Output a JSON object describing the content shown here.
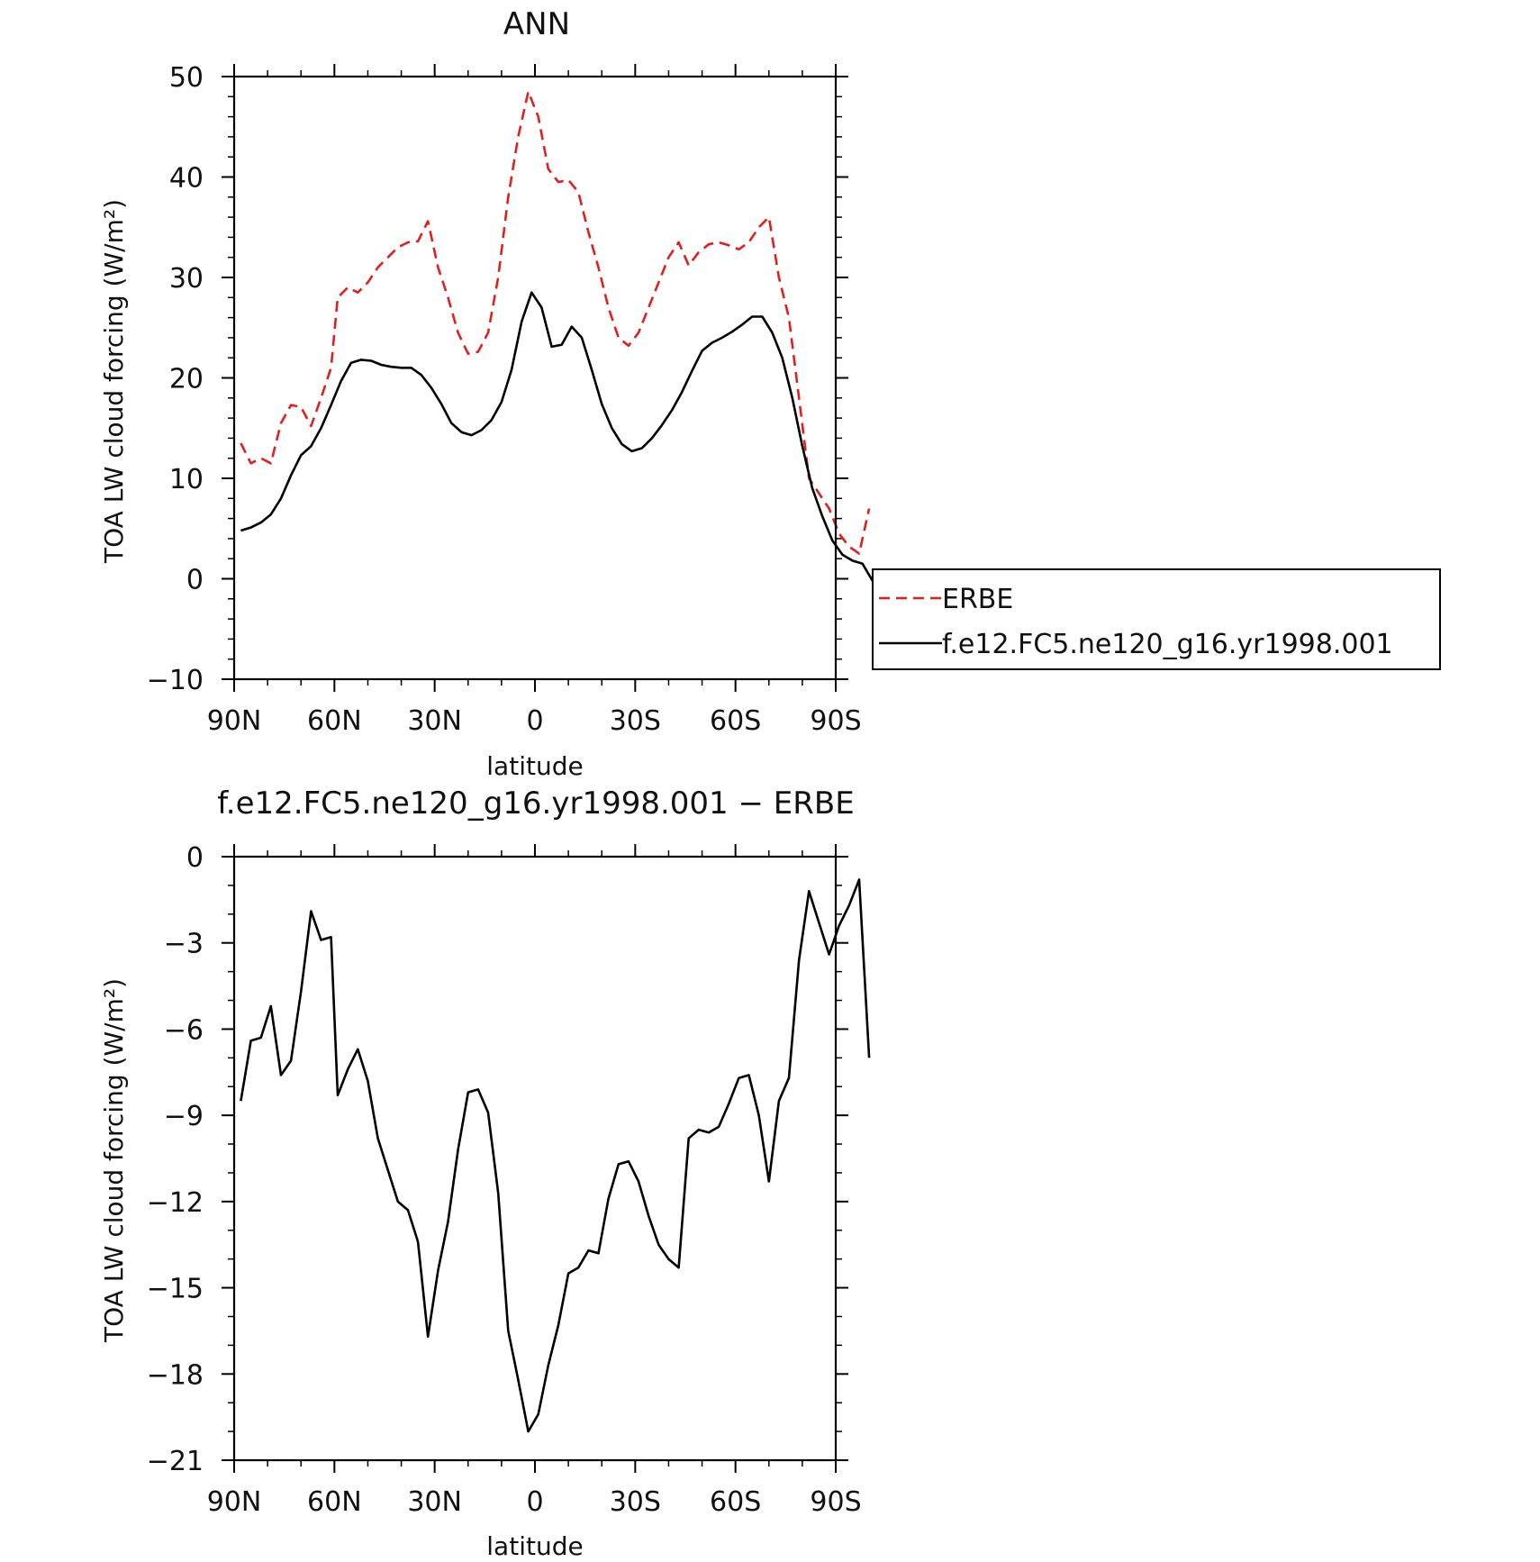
{
  "chart_data": [
    {
      "type": "line",
      "title": "ANN",
      "xlabel": "latitude",
      "ylabel": "TOA LW cloud forcing (W/m²)",
      "xlim": [
        90,
        -90
      ],
      "ylim": [
        -10,
        50
      ],
      "xticks": [
        {
          "value": 90,
          "label": "90N"
        },
        {
          "value": 60,
          "label": "60N"
        },
        {
          "value": 30,
          "label": "30N"
        },
        {
          "value": 0,
          "label": "0"
        },
        {
          "value": -30,
          "label": "30S"
        },
        {
          "value": -60,
          "label": "60S"
        },
        {
          "value": -90,
          "label": "90S"
        }
      ],
      "yticks": [
        {
          "value": 50,
          "label": "50"
        },
        {
          "value": 40,
          "label": "40"
        },
        {
          "value": 30,
          "label": "30"
        },
        {
          "value": 20,
          "label": "20"
        },
        {
          "value": 10,
          "label": "10"
        },
        {
          "value": 0,
          "label": "0"
        },
        {
          "value": -10,
          "label": "−10"
        }
      ],
      "legend_position": "right, outside plot",
      "series": [
        {
          "name": "ERBE",
          "color": "#e0201c",
          "dash": "dashed",
          "points": [
            [
              88,
              13.5
            ],
            [
              85,
              11.5
            ],
            [
              82,
              12
            ],
            [
              79,
              11.5
            ],
            [
              76,
              15.5
            ],
            [
              73,
              17.3
            ],
            [
              70,
              17.1
            ],
            [
              67,
              15.2
            ],
            [
              64,
              18
            ],
            [
              61,
              21
            ],
            [
              59,
              28
            ],
            [
              56,
              29
            ],
            [
              53,
              28.5
            ],
            [
              50,
              29.5
            ],
            [
              47,
              31
            ],
            [
              44,
              32
            ],
            [
              41,
              33
            ],
            [
              38,
              33.5
            ],
            [
              35,
              33.6
            ],
            [
              32,
              35.6
            ],
            [
              29,
              31
            ],
            [
              26,
              28
            ],
            [
              23,
              24.5
            ],
            [
              20,
              22.4
            ],
            [
              17,
              22.6
            ],
            [
              14,
              24.5
            ],
            [
              11,
              30
            ],
            [
              8,
              38
            ],
            [
              5,
              44
            ],
            [
              2,
              48.5
            ],
            [
              -1,
              46
            ],
            [
              -4,
              40.8
            ],
            [
              -7,
              39.5
            ],
            [
              -10,
              39.7
            ],
            [
              -13,
              38.5
            ],
            [
              -16,
              34.5
            ],
            [
              -19,
              31
            ],
            [
              -22,
              27
            ],
            [
              -25,
              24
            ],
            [
              -28,
              23.2
            ],
            [
              -31,
              24.5
            ],
            [
              -34,
              27
            ],
            [
              -37,
              29.5
            ],
            [
              -40,
              32
            ],
            [
              -43,
              33.5
            ],
            [
              -46,
              31.2
            ],
            [
              -49,
              32.5
            ],
            [
              -52,
              33.3
            ],
            [
              -55,
              33.5
            ],
            [
              -58,
              33.2
            ],
            [
              -61,
              32.8
            ],
            [
              -64,
              33.5
            ],
            [
              -67,
              35
            ],
            [
              -70,
              36
            ],
            [
              -73,
              30
            ],
            [
              -76,
              26
            ],
            [
              -79,
              18
            ],
            [
              -82,
              10
            ],
            [
              -85,
              8.5
            ],
            [
              -88,
              7
            ],
            [
              -91,
              4.5
            ],
            [
              -94,
              3.2
            ],
            [
              -97,
              2.5
            ],
            [
              -100,
              7
            ]
          ]
        },
        {
          "name": "f.e12.FC5.ne120_g16.yr1998.001",
          "color": "#000000",
          "dash": "solid",
          "points": [
            [
              88,
              4.8
            ],
            [
              85,
              5.1
            ],
            [
              82,
              5.6
            ],
            [
              79,
              6.4
            ],
            [
              76,
              8
            ],
            [
              73,
              10.3
            ],
            [
              70,
              12.3
            ],
            [
              67,
              13.2
            ],
            [
              64,
              15
            ],
            [
              61,
              17.3
            ],
            [
              58,
              19.7
            ],
            [
              55,
              21.5
            ],
            [
              52,
              21.8
            ],
            [
              49,
              21.7
            ],
            [
              46,
              21.3
            ],
            [
              43,
              21.1
            ],
            [
              40,
              21
            ],
            [
              37,
              21
            ],
            [
              34,
              20.3
            ],
            [
              31,
              19
            ],
            [
              28,
              17.4
            ],
            [
              25,
              15.5
            ],
            [
              22,
              14.6
            ],
            [
              19,
              14.3
            ],
            [
              16,
              14.8
            ],
            [
              13,
              15.8
            ],
            [
              10,
              17.6
            ],
            [
              7,
              20.8
            ],
            [
              4,
              25.6
            ],
            [
              1,
              28.5
            ],
            [
              -2,
              27
            ],
            [
              -5,
              23.1
            ],
            [
              -8,
              23.3
            ],
            [
              -11,
              25.1
            ],
            [
              -14,
              24
            ],
            [
              -17,
              20.8
            ],
            [
              -20,
              17.4
            ],
            [
              -23,
              15
            ],
            [
              -26,
              13.4
            ],
            [
              -29,
              12.7
            ],
            [
              -32,
              13
            ],
            [
              -35,
              14
            ],
            [
              -38,
              15.3
            ],
            [
              -41,
              16.8
            ],
            [
              -44,
              18.6
            ],
            [
              -47,
              20.7
            ],
            [
              -50,
              22.7
            ],
            [
              -53,
              23.5
            ],
            [
              -56,
              24
            ],
            [
              -59,
              24.6
            ],
            [
              -62,
              25.3
            ],
            [
              -65,
              26.1
            ],
            [
              -68,
              26.1
            ],
            [
              -71,
              24.5
            ],
            [
              -74,
              22
            ],
            [
              -77,
              18
            ],
            [
              -80,
              13.2
            ],
            [
              -83,
              9
            ],
            [
              -86,
              6.2
            ],
            [
              -89,
              3.8
            ],
            [
              -92,
              2.4
            ],
            [
              -95,
              1.8
            ],
            [
              -98,
              1.5
            ],
            [
              -101,
              -0.2
            ]
          ]
        }
      ]
    },
    {
      "type": "line",
      "title": "f.e12.FC5.ne120_g16.yr1998.001 − ERBE",
      "xlabel": "latitude",
      "ylabel": "TOA LW cloud forcing (W/m²)",
      "xlim": [
        90,
        -90
      ],
      "ylim": [
        -21,
        0
      ],
      "xticks": [
        {
          "value": 90,
          "label": "90N"
        },
        {
          "value": 60,
          "label": "60N"
        },
        {
          "value": 30,
          "label": "30N"
        },
        {
          "value": 0,
          "label": "0"
        },
        {
          "value": -30,
          "label": "30S"
        },
        {
          "value": -60,
          "label": "60S"
        },
        {
          "value": -90,
          "label": "90S"
        }
      ],
      "yticks": [
        {
          "value": 0,
          "label": "0"
        },
        {
          "value": -3,
          "label": "−3"
        },
        {
          "value": -6,
          "label": "−6"
        },
        {
          "value": -9,
          "label": "−9"
        },
        {
          "value": -12,
          "label": "−12"
        },
        {
          "value": -15,
          "label": "−15"
        },
        {
          "value": -18,
          "label": "−18"
        },
        {
          "value": -21,
          "label": "−21"
        }
      ],
      "series": [
        {
          "color": "#000000",
          "dash": "solid",
          "points": [
            [
              88,
              -8.5
            ],
            [
              85,
              -6.4
            ],
            [
              82,
              -6.3
            ],
            [
              79,
              -5.2
            ],
            [
              76,
              -7.6
            ],
            [
              73,
              -7.1
            ],
            [
              70,
              -4.7
            ],
            [
              67,
              -1.9
            ],
            [
              64,
              -2.9
            ],
            [
              61,
              -2.8
            ],
            [
              59,
              -8.3
            ],
            [
              56,
              -7.4
            ],
            [
              53,
              -6.7
            ],
            [
              50,
              -7.8
            ],
            [
              47,
              -9.8
            ],
            [
              44,
              -10.9
            ],
            [
              41,
              -12
            ],
            [
              38,
              -12.3
            ],
            [
              35,
              -13.4
            ],
            [
              32,
              -16.7
            ],
            [
              29,
              -14.4
            ],
            [
              26,
              -12.7
            ],
            [
              23,
              -10.2
            ],
            [
              20,
              -8.2
            ],
            [
              17,
              -8.1
            ],
            [
              14,
              -8.9
            ],
            [
              11,
              -11.7
            ],
            [
              8,
              -16.5
            ],
            [
              5,
              -18.2
            ],
            [
              2,
              -20
            ],
            [
              -1,
              -19.4
            ],
            [
              -4,
              -17.7
            ],
            [
              -7,
              -16.3
            ],
            [
              -10,
              -14.5
            ],
            [
              -13,
              -14.3
            ],
            [
              -16,
              -13.7
            ],
            [
              -19,
              -13.8
            ],
            [
              -22,
              -11.9
            ],
            [
              -25,
              -10.7
            ],
            [
              -28,
              -10.6
            ],
            [
              -31,
              -11.3
            ],
            [
              -34,
              -12.5
            ],
            [
              -37,
              -13.5
            ],
            [
              -40,
              -14
            ],
            [
              -43,
              -14.3
            ],
            [
              -46,
              -9.8
            ],
            [
              -49,
              -9.5
            ],
            [
              -52,
              -9.6
            ],
            [
              -55,
              -9.4
            ],
            [
              -58,
              -8.6
            ],
            [
              -61,
              -7.7
            ],
            [
              -64,
              -7.6
            ],
            [
              -67,
              -9
            ],
            [
              -70,
              -11.3
            ],
            [
              -73,
              -8.5
            ],
            [
              -76,
              -7.7
            ],
            [
              -79,
              -3.6
            ],
            [
              -82,
              -1.2
            ],
            [
              -85,
              -2.3
            ],
            [
              -88,
              -3.4
            ],
            [
              -91,
              -2.4
            ],
            [
              -94,
              -1.7
            ],
            [
              -97,
              -0.8
            ],
            [
              -100,
              -7
            ]
          ]
        }
      ]
    }
  ]
}
